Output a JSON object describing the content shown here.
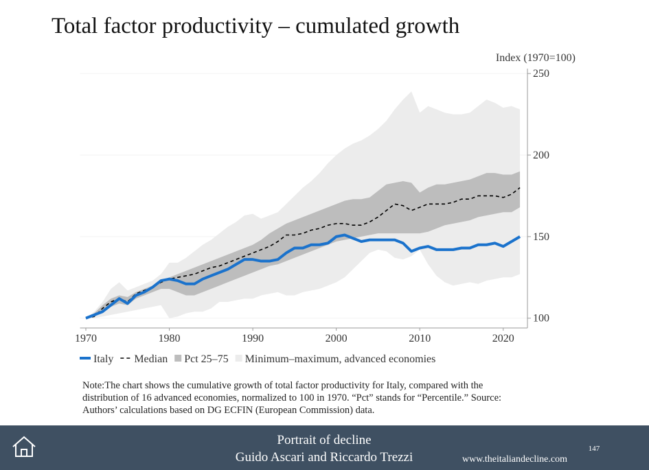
{
  "slide": {
    "footer_title": "Portrait of decline",
    "footer_authors": "Guido Ascari and Riccardo Trezzi",
    "footer_url": "www.theitaliandecline.com",
    "page_number": "147",
    "note_lines": [
      "Note:The chart shows the cumulative growth of total factor productivity for Italy, compared with the",
      "distribution of 16 advanced economies, normalized to 100 in 1970. “Pct” stands for “Percentile.” Source:",
      "Authors’ calculations based on DG ECFIN (European Commission) data."
    ]
  },
  "chart_data": {
    "type": "line",
    "title": "Total factor productivity – cumulated growth",
    "y_axis_label": "Index (1970=100)",
    "x": [
      1970,
      1971,
      1972,
      1973,
      1974,
      1975,
      1976,
      1977,
      1978,
      1979,
      1980,
      1981,
      1982,
      1983,
      1984,
      1985,
      1986,
      1987,
      1988,
      1989,
      1990,
      1991,
      1992,
      1993,
      1994,
      1995,
      1996,
      1997,
      1998,
      1999,
      2000,
      2001,
      2002,
      2003,
      2004,
      2005,
      2006,
      2007,
      2008,
      2009,
      2010,
      2011,
      2012,
      2013,
      2014,
      2015,
      2016,
      2017,
      2018,
      2019,
      2020,
      2021,
      2022
    ],
    "xlim": [
      1969.3,
      2022.9
    ],
    "xticks": [
      1970,
      1980,
      1990,
      2000,
      2010,
      2020
    ],
    "ylim": [
      94,
      253
    ],
    "yticks": [
      100,
      150,
      200,
      250
    ],
    "grid": true,
    "y_axis_side": "right",
    "series": [
      {
        "name": "Italy",
        "color": "#1a72cc",
        "style": "solid",
        "values": [
          100,
          102,
          104,
          108,
          112,
          109,
          114,
          116,
          119,
          123,
          124,
          123,
          121,
          121,
          124,
          126,
          128,
          130,
          133,
          136,
          136,
          135,
          135,
          136,
          140,
          143,
          143,
          145,
          145,
          146,
          150,
          151,
          149,
          147,
          148,
          148,
          148,
          148,
          146,
          141,
          143,
          144,
          142,
          142,
          142,
          143,
          143,
          145,
          145,
          146,
          144,
          147,
          150
        ]
      },
      {
        "name": "Median",
        "color": "#000000",
        "style": "dashed",
        "values": [
          100,
          101,
          106,
          110,
          112,
          110,
          115,
          117,
          119,
          122,
          124,
          125,
          126,
          127,
          129,
          131,
          132,
          134,
          136,
          138,
          140,
          142,
          144,
          147,
          151,
          151,
          152,
          154,
          155,
          157,
          158,
          158,
          157,
          157,
          159,
          162,
          166,
          170,
          169,
          166,
          168,
          170,
          170,
          170,
          171,
          173,
          173,
          175,
          175,
          175,
          174,
          176,
          180
        ]
      },
      {
        "name": "Pct 25–75",
        "color": "#bdbdbd",
        "style": "band",
        "lower": [
          100,
          101,
          104,
          107,
          109,
          108,
          112,
          114,
          116,
          118,
          118,
          116,
          114,
          114,
          116,
          118,
          120,
          122,
          124,
          126,
          128,
          130,
          132,
          133,
          135,
          137,
          139,
          141,
          143,
          145,
          147,
          148,
          149,
          150,
          151,
          152,
          152,
          152,
          152,
          152,
          152,
          153,
          155,
          157,
          158,
          159,
          160,
          162,
          163,
          164,
          165,
          165,
          168
        ],
        "upper": [
          100,
          103,
          108,
          112,
          114,
          113,
          116,
          118,
          120,
          123,
          125,
          127,
          129,
          131,
          133,
          135,
          137,
          139,
          141,
          143,
          145,
          148,
          152,
          155,
          158,
          160,
          162,
          164,
          166,
          168,
          170,
          172,
          173,
          173,
          174,
          178,
          182,
          183,
          184,
          183,
          177,
          180,
          182,
          182,
          183,
          184,
          185,
          187,
          189,
          189,
          188,
          188,
          190
        ]
      },
      {
        "name": "Minimum–maximum, advanced economies",
        "color": "#ececec",
        "style": "band",
        "lower": [
          100,
          100,
          101,
          102,
          103,
          104,
          105,
          106,
          107,
          108,
          100,
          101,
          103,
          104,
          104,
          106,
          110,
          110,
          111,
          112,
          112,
          114,
          115,
          116,
          114,
          114,
          116,
          117,
          118,
          120,
          122,
          125,
          130,
          135,
          140,
          142,
          141,
          137,
          136,
          138,
          142,
          133,
          126,
          122,
          120,
          121,
          122,
          121,
          123,
          124,
          125,
          125,
          127
        ],
        "upper": [
          100,
          104,
          110,
          118,
          122,
          117,
          119,
          121,
          123,
          127,
          134,
          134,
          137,
          141,
          145,
          148,
          152,
          156,
          159,
          163,
          164,
          161,
          163,
          165,
          170,
          175,
          180,
          184,
          189,
          195,
          200,
          204,
          207,
          209,
          212,
          216,
          221,
          228,
          234,
          239,
          226,
          230,
          228,
          226,
          225,
          225,
          226,
          230,
          234,
          232,
          229,
          230,
          228
        ]
      }
    ]
  }
}
